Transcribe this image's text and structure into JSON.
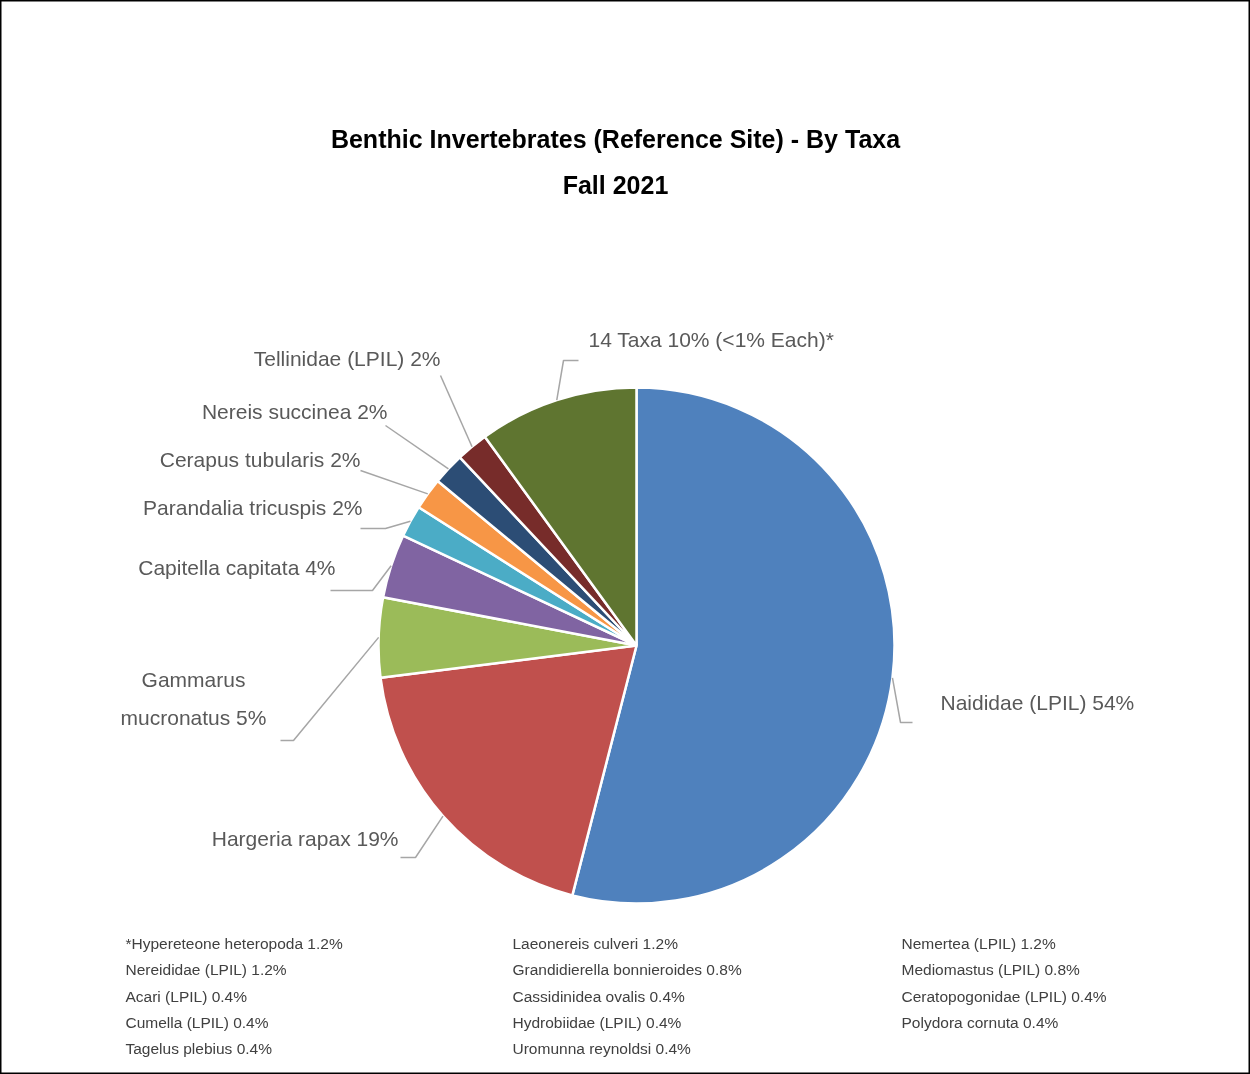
{
  "chart_data": {
    "type": "pie",
    "title": "Benthic Invertebrates (Reference Site) - By Taxa\nFall 2021",
    "categories": [
      "Naididae (LPIL)",
      "Hargeria rapax",
      "Gammarus mucronatus",
      "Capitella capitata",
      "Parandalia tricuspis",
      "Cerapus tubularis",
      "Nereis succinea",
      "Tellinidae (LPIL)",
      "14 Taxa"
    ],
    "values": [
      54,
      19,
      5,
      4,
      2,
      2,
      2,
      2,
      10
    ],
    "value_labels": [
      "54%",
      "19%",
      "5%",
      "4%",
      "2%",
      "2%",
      "2%",
      "2%",
      "10% (<1% Each)*"
    ],
    "colors": [
      "#4f81bd",
      "#c0504d",
      "#9bbb59",
      "#8064a2",
      "#4bacc6",
      "#f79646",
      "#2c4d75",
      "#772c2a",
      "#5f7530"
    ],
    "annotations": [
      "*Hypereteone heteropoda 1.2%",
      "Nereididae (LPIL) 1.2%",
      "Acari (LPIL) 0.4%",
      "Cumella (LPIL) 0.4%",
      "Tagelus plebius 0.4%",
      "Laeonereis culveri 1.2%",
      "Grandidierella bonnieroides 0.8%",
      "Cassidinidea ovalis 0.4%",
      "Hydrobiidae (LPIL) 0.4%",
      "Uromunna reynoldsi 0.4%",
      "Nemertea (LPIL) 1.2%",
      "Mediomastus (LPIL) 0.8%",
      "Ceratopogonidae (LPIL) 0.4%",
      "Polydora cornuta 0.4%"
    ]
  }
}
